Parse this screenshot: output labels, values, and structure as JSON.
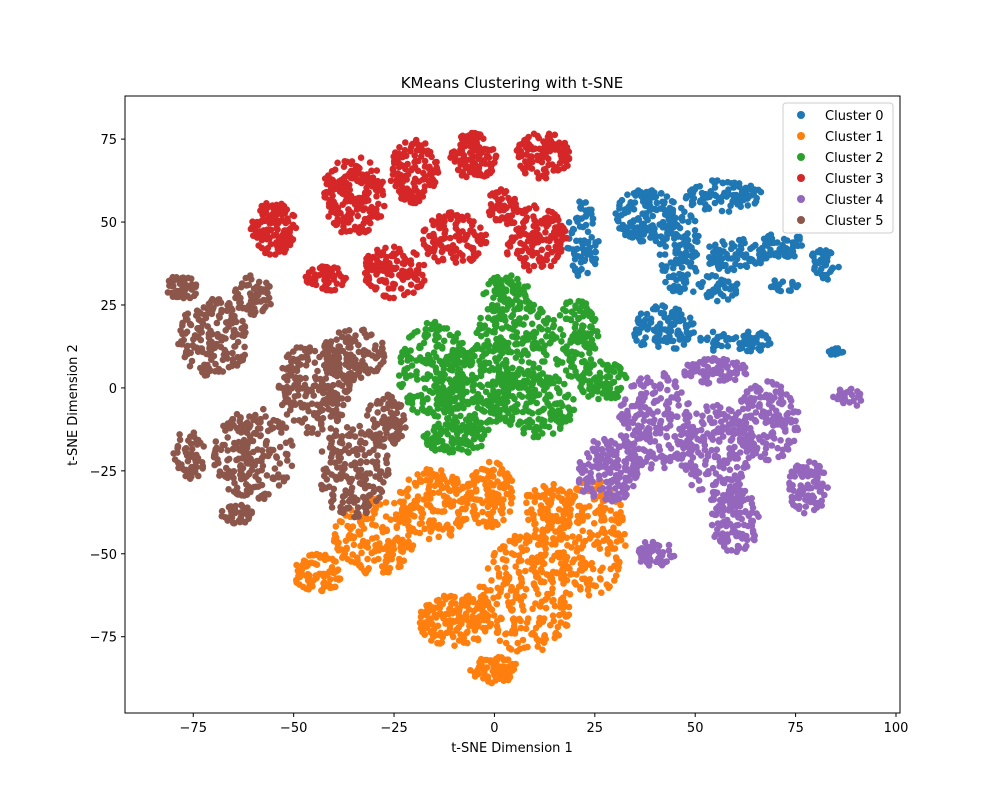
{
  "chart_data": {
    "type": "scatter",
    "title": "KMeans Clustering with t-SNE",
    "xlabel": "t-SNE Dimension 1",
    "ylabel": "t-SNE Dimension 2",
    "xlim": [
      -92,
      101
    ],
    "ylim": [
      -98,
      88
    ],
    "xticks": [
      -75,
      -50,
      -25,
      0,
      25,
      50,
      75,
      100
    ],
    "yticks": [
      -75,
      -50,
      -25,
      0,
      25,
      50,
      75
    ],
    "xtick_labels": [
      "−75",
      "−50",
      "−25",
      "0",
      "25",
      "50",
      "75",
      "100"
    ],
    "ytick_labels": [
      "−75",
      "−50",
      "−25",
      "0",
      "25",
      "50",
      "75"
    ],
    "grid": false,
    "legend_position": "top-right",
    "series": [
      {
        "name": "Cluster 0",
        "color": "#1f77b4",
        "regions": [
          {
            "cx": 38,
            "cy": 52,
            "rx": 8,
            "ry": 8,
            "n": 140
          },
          {
            "cx": 46,
            "cy": 42,
            "rx": 5,
            "ry": 14,
            "n": 120
          },
          {
            "cx": 22,
            "cy": 45,
            "rx": 4,
            "ry": 12,
            "n": 80
          },
          {
            "cx": 57,
            "cy": 58,
            "rx": 10,
            "ry": 5,
            "n": 90
          },
          {
            "cx": 60,
            "cy": 40,
            "rx": 8,
            "ry": 5,
            "n": 80
          },
          {
            "cx": 42,
            "cy": 18,
            "rx": 8,
            "ry": 7,
            "n": 110
          },
          {
            "cx": 55,
            "cy": 30,
            "rx": 6,
            "ry": 4,
            "n": 40
          },
          {
            "cx": 72,
            "cy": 43,
            "rx": 6,
            "ry": 4,
            "n": 50
          },
          {
            "cx": 72,
            "cy": 31,
            "rx": 4,
            "ry": 2,
            "n": 20
          },
          {
            "cx": 82,
            "cy": 37,
            "rx": 4,
            "ry": 5,
            "n": 40
          },
          {
            "cx": 64,
            "cy": 14,
            "rx": 5,
            "ry": 3,
            "n": 45
          },
          {
            "cx": 55,
            "cy": 14,
            "rx": 4,
            "ry": 3,
            "n": 25
          },
          {
            "cx": 85,
            "cy": 11,
            "rx": 2,
            "ry": 1.2,
            "n": 12
          }
        ]
      },
      {
        "name": "Cluster 1",
        "color": "#ff7f0e",
        "regions": [
          {
            "cx": -15,
            "cy": -35,
            "rx": 9,
            "ry": 11,
            "n": 160
          },
          {
            "cx": -1,
            "cy": -32,
            "rx": 6,
            "ry": 10,
            "n": 120
          },
          {
            "cx": -30,
            "cy": -45,
            "rx": 10,
            "ry": 12,
            "n": 170
          },
          {
            "cx": -44,
            "cy": -56,
            "rx": 6,
            "ry": 6,
            "n": 90
          },
          {
            "cx": -10,
            "cy": -70,
            "rx": 9,
            "ry": 8,
            "n": 150
          },
          {
            "cx": 8,
            "cy": -62,
            "rx": 12,
            "ry": 18,
            "n": 260
          },
          {
            "cx": 24,
            "cy": -45,
            "rx": 9,
            "ry": 18,
            "n": 200
          },
          {
            "cx": 0,
            "cy": -85,
            "rx": 6,
            "ry": 4,
            "n": 80
          },
          {
            "cx": 13,
            "cy": -38,
            "rx": 6,
            "ry": 10,
            "n": 100
          }
        ]
      },
      {
        "name": "Cluster 2",
        "color": "#2ca02c",
        "regions": [
          {
            "cx": -15,
            "cy": 5,
            "rx": 9,
            "ry": 15,
            "n": 200
          },
          {
            "cx": -5,
            "cy": 0,
            "rx": 9,
            "ry": 14,
            "n": 200
          },
          {
            "cx": 5,
            "cy": 15,
            "rx": 10,
            "ry": 12,
            "n": 180
          },
          {
            "cx": 10,
            "cy": -5,
            "rx": 10,
            "ry": 10,
            "n": 180
          },
          {
            "cx": 20,
            "cy": 15,
            "rx": 6,
            "ry": 12,
            "n": 120
          },
          {
            "cx": 27,
            "cy": 2,
            "rx": 6,
            "ry": 6,
            "n": 80
          },
          {
            "cx": -10,
            "cy": -15,
            "rx": 8,
            "ry": 5,
            "n": 100
          },
          {
            "cx": 3,
            "cy": 28,
            "rx": 6,
            "ry": 6,
            "n": 80
          }
        ]
      },
      {
        "name": "Cluster 3",
        "color": "#d62728",
        "regions": [
          {
            "cx": -35,
            "cy": 58,
            "rx": 8,
            "ry": 12,
            "n": 200
          },
          {
            "cx": -55,
            "cy": 48,
            "rx": 6,
            "ry": 8,
            "n": 130
          },
          {
            "cx": -20,
            "cy": 65,
            "rx": 6,
            "ry": 10,
            "n": 140
          },
          {
            "cx": -5,
            "cy": 70,
            "rx": 6,
            "ry": 7,
            "n": 110
          },
          {
            "cx": 12,
            "cy": 70,
            "rx": 7,
            "ry": 7,
            "n": 110
          },
          {
            "cx": -10,
            "cy": 45,
            "rx": 8,
            "ry": 8,
            "n": 120
          },
          {
            "cx": 10,
            "cy": 45,
            "rx": 8,
            "ry": 10,
            "n": 140
          },
          {
            "cx": -25,
            "cy": 35,
            "rx": 8,
            "ry": 8,
            "n": 120
          },
          {
            "cx": -42,
            "cy": 33,
            "rx": 5,
            "ry": 4,
            "n": 50
          },
          {
            "cx": 2,
            "cy": 55,
            "rx": 4,
            "ry": 5,
            "n": 50
          }
        ]
      },
      {
        "name": "Cluster 4",
        "color": "#9467bd",
        "regions": [
          {
            "cx": 40,
            "cy": -10,
            "rx": 9,
            "ry": 15,
            "n": 200
          },
          {
            "cx": 28,
            "cy": -25,
            "rx": 8,
            "ry": 10,
            "n": 150
          },
          {
            "cx": 55,
            "cy": -20,
            "rx": 9,
            "ry": 15,
            "n": 200
          },
          {
            "cx": 68,
            "cy": -10,
            "rx": 8,
            "ry": 12,
            "n": 170
          },
          {
            "cx": 60,
            "cy": -40,
            "rx": 6,
            "ry": 10,
            "n": 120
          },
          {
            "cx": 78,
            "cy": -30,
            "rx": 5,
            "ry": 8,
            "n": 90
          },
          {
            "cx": 55,
            "cy": 5,
            "rx": 8,
            "ry": 4,
            "n": 80
          },
          {
            "cx": 40,
            "cy": -50,
            "rx": 5,
            "ry": 4,
            "n": 50
          },
          {
            "cx": 88,
            "cy": -3,
            "rx": 4,
            "ry": 3,
            "n": 25
          }
        ]
      },
      {
        "name": "Cluster 5",
        "color": "#8c564b",
        "regions": [
          {
            "cx": -70,
            "cy": 15,
            "rx": 9,
            "ry": 12,
            "n": 180
          },
          {
            "cx": -60,
            "cy": -20,
            "rx": 10,
            "ry": 14,
            "n": 200
          },
          {
            "cx": -45,
            "cy": 0,
            "rx": 9,
            "ry": 14,
            "n": 200
          },
          {
            "cx": -35,
            "cy": -25,
            "rx": 9,
            "ry": 14,
            "n": 180
          },
          {
            "cx": -35,
            "cy": 10,
            "rx": 8,
            "ry": 8,
            "n": 130
          },
          {
            "cx": -27,
            "cy": -10,
            "rx": 5,
            "ry": 8,
            "n": 80
          },
          {
            "cx": -76,
            "cy": -20,
            "rx": 4,
            "ry": 8,
            "n": 60
          },
          {
            "cx": -78,
            "cy": 30,
            "rx": 4,
            "ry": 4,
            "n": 50
          },
          {
            "cx": -60,
            "cy": 28,
            "rx": 5,
            "ry": 6,
            "n": 60
          },
          {
            "cx": -64,
            "cy": -38,
            "rx": 4,
            "ry": 3,
            "n": 40
          }
        ]
      }
    ]
  }
}
